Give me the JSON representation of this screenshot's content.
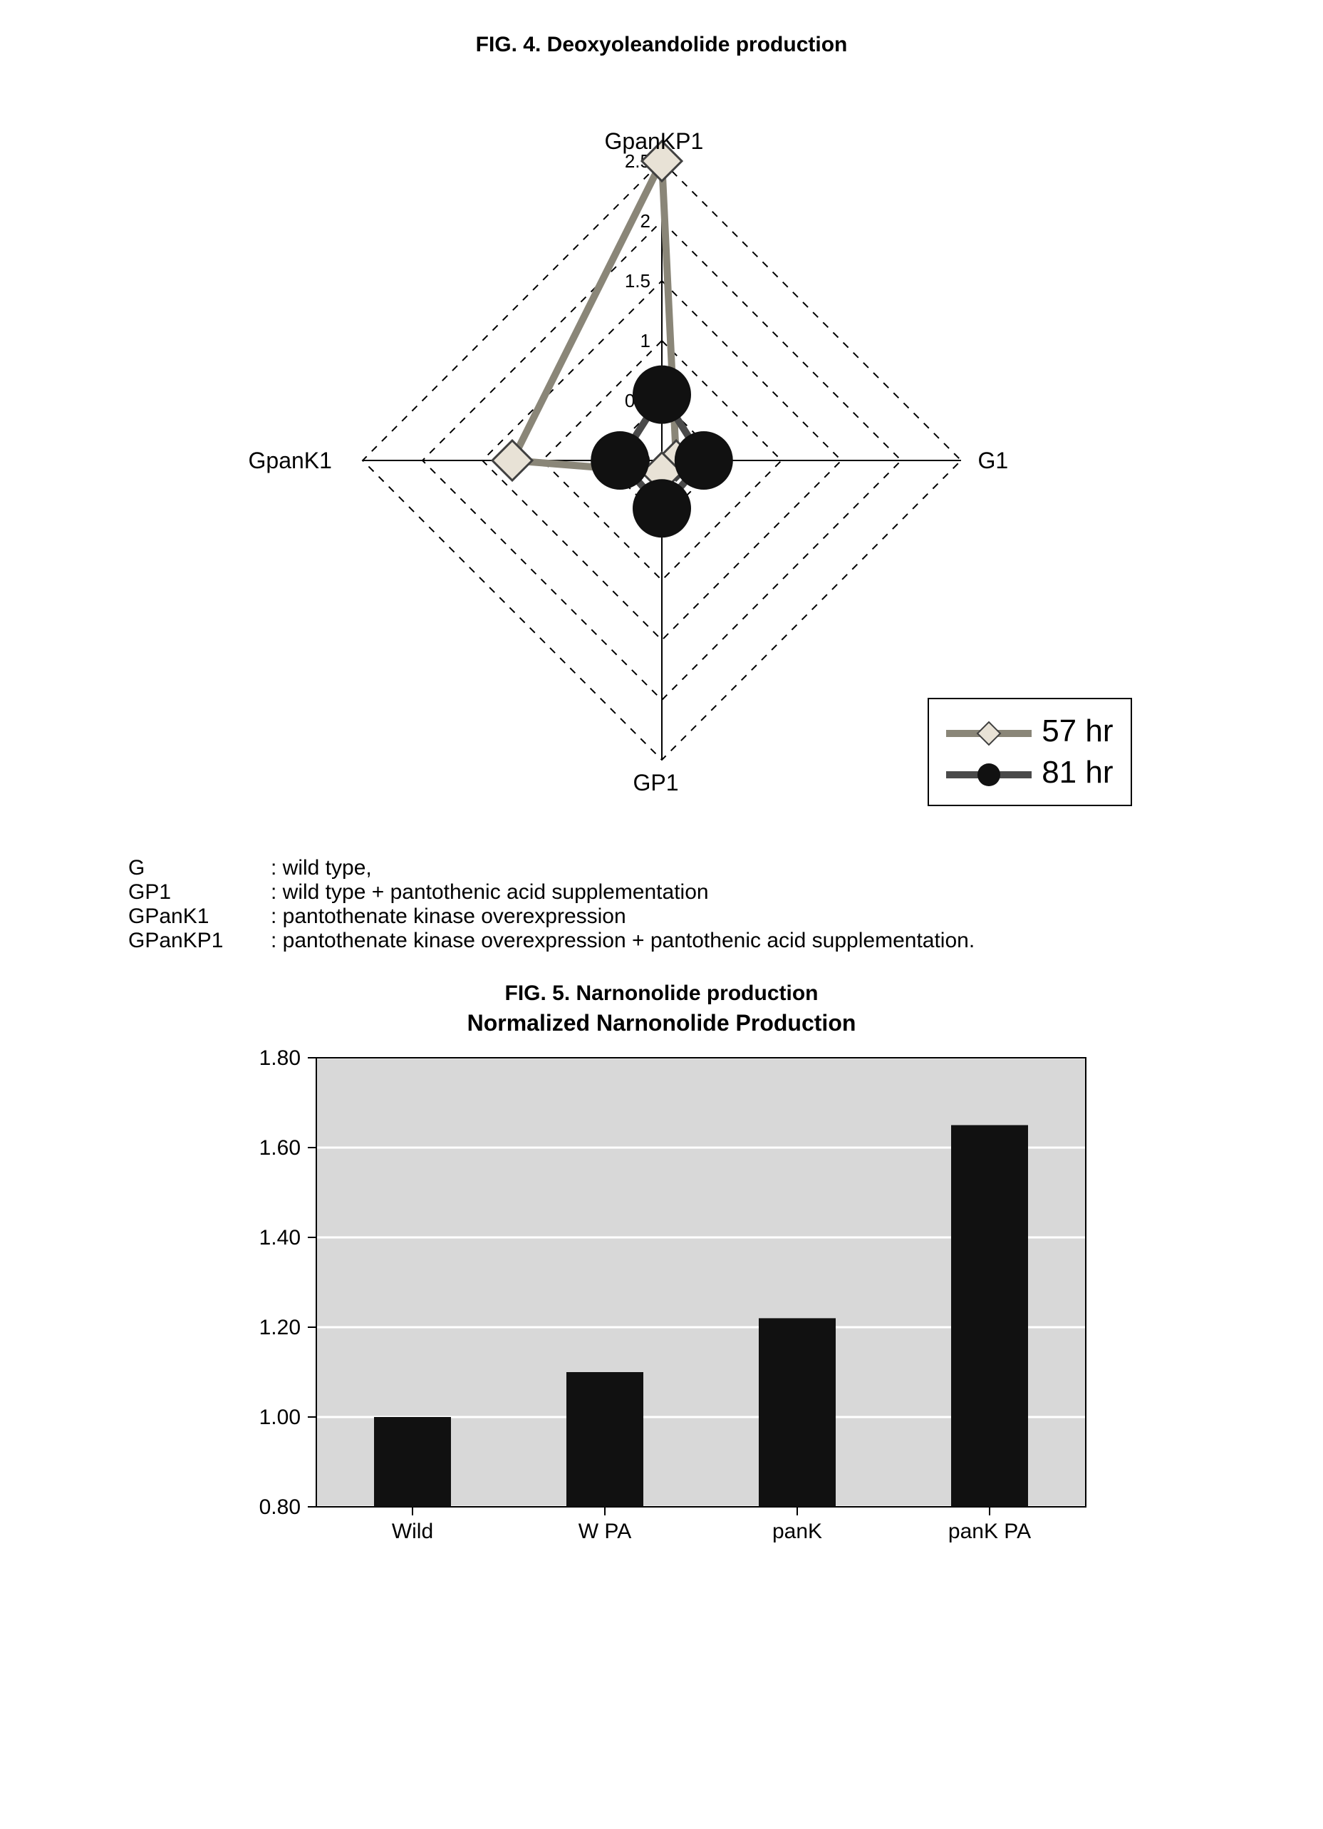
{
  "fig4": {
    "title": "FIG. 4. Deoxyoleandolide production",
    "axes": [
      "GpanKP1",
      "G1",
      "GP1",
      "GpanK1"
    ],
    "ticks": [
      0,
      0.5,
      1,
      1.5,
      2,
      2.5
    ],
    "max": 2.5,
    "series": [
      {
        "name": "57 hr",
        "marker": "diamond",
        "marker_fill": "#e8e2d6",
        "marker_stroke": "#404040",
        "line_color": "#8a8678",
        "line_width": 10,
        "values": [
          2.5,
          0.12,
          0.1,
          1.25
        ]
      },
      {
        "name": "81 hr",
        "marker": "circle",
        "marker_fill": "#111111",
        "marker_stroke": "#111111",
        "line_color": "#4a4a4a",
        "line_width": 10,
        "values": [
          0.55,
          0.35,
          0.4,
          0.35
        ]
      }
    ],
    "grid_color": "#000000",
    "background": "#ffffff",
    "tick_fontsize": 26,
    "axis_fontsize": 32
  },
  "key": {
    "rows": [
      {
        "term": "G",
        "desc": ": wild type,"
      },
      {
        "term": "GP1",
        "desc": ": wild type + pantothenic acid supplementation"
      },
      {
        "term": "GPanK1",
        "desc": ": pantothenate kinase overexpression"
      },
      {
        "term": "GPanKP1",
        "desc": ": pantothenate kinase overexpression + pantothenic acid supplementation."
      }
    ]
  },
  "fig5": {
    "title1": "FIG. 5. Narnonolide production",
    "title2": "Normalized Narnonolide Production",
    "categories": [
      "Wild",
      "W PA",
      "panK",
      "panK PA"
    ],
    "values": [
      1.0,
      1.1,
      1.22,
      1.65
    ],
    "ylim": [
      0.8,
      1.8
    ],
    "ytick_step": 0.2,
    "bar_color": "#111111",
    "plot_bg": "#d8d8d8",
    "grid_color": "#ffffff",
    "axis_color": "#000000",
    "label_fontsize": 30,
    "tick_fontsize": 30,
    "bar_width_ratio": 0.4
  }
}
